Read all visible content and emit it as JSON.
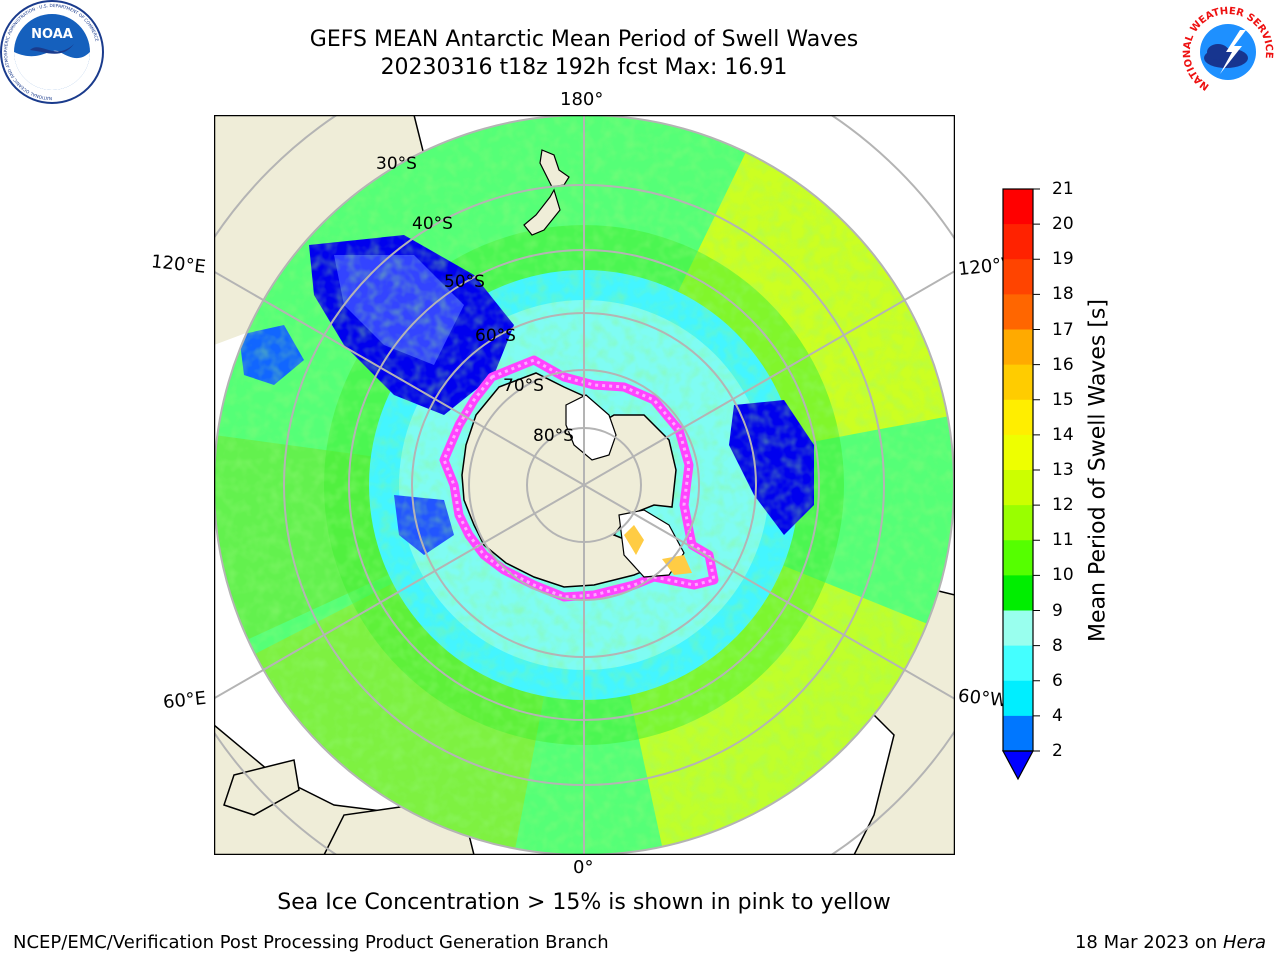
{
  "header": {
    "title_line1": "GEFS MEAN Antarctic Mean Period of Swell Waves",
    "title_line2": "20230316 t18z 192h fcst   Max: 16.91"
  },
  "logos": {
    "left_text": "NOAA",
    "left_ring_text": "NATIONAL OCEANIC AND ATMOSPHERIC ADMINISTRATION · U.S. DEPARTMENT OF COMMERCE",
    "right_ring_text": "NATIONAL WEATHER SERVICE"
  },
  "map": {
    "lon_labels": {
      "top": "180°",
      "bottom": "0°",
      "left_upper": "120°E",
      "left_lower": "60°E",
      "right_upper": "120°W",
      "right_lower": "60°W"
    },
    "lat_labels": [
      "30°S",
      "40°S",
      "50°S",
      "60°S",
      "70°S",
      "80°S"
    ],
    "ice_colors": [
      "#ff44ff",
      "#ffaaff",
      "#ffcc44",
      "#ffff44"
    ],
    "land_color": "#efedd8",
    "ocean_colors": {
      "dark_blue": "#0000ee",
      "cyan_light": "#99ffff",
      "cyan": "#3cf2ff",
      "green_light": "#55ff88",
      "green": "#55ee22",
      "yellow_green": "#ccff22"
    }
  },
  "colorbar": {
    "label": "Mean Period of Swell Waves [s]",
    "ticks": [
      "21",
      "20",
      "19",
      "18",
      "17",
      "16",
      "15",
      "14",
      "13",
      "12",
      "11",
      "10",
      "9",
      "8",
      "6",
      "4",
      "2"
    ],
    "colors": [
      "#ff0000",
      "#ff2200",
      "#ff4400",
      "#ff6600",
      "#ff8800",
      "#ffaa00",
      "#ffcc00",
      "#ffee00",
      "#eeff00",
      "#ccff00",
      "#99ff00",
      "#55ff00",
      "#00ee00",
      "#44ff77",
      "#99ffee",
      "#44ffff",
      "#00eeff",
      "#0077ff",
      "#0000ff"
    ]
  },
  "note": "Sea Ice Concentration > 15% is shown in pink to yellow",
  "footer": {
    "left": "NCEP/EMC/Verification Post Processing Product Generation Branch",
    "right_prefix": "18 Mar 2023 on ",
    "right_host": "Hera"
  }
}
